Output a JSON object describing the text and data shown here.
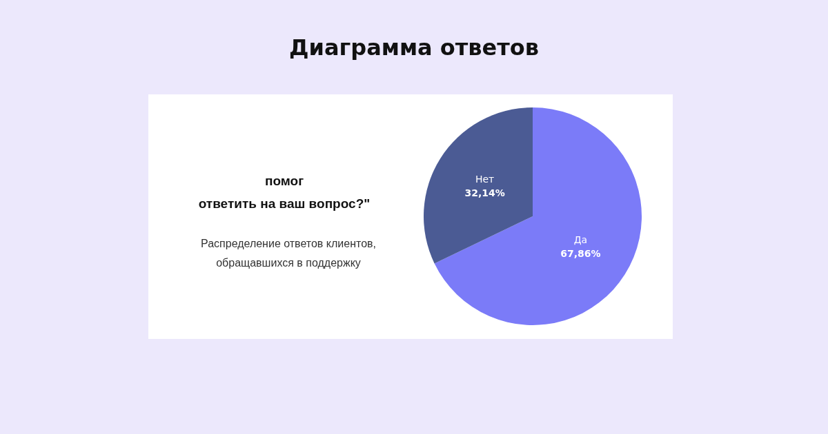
{
  "chart_data": {
    "type": "pie",
    "title": "Диаграмма ответов",
    "subtitle": "помог\nответить на ваш вопрос?\"",
    "annotations": [
      "Распределение ответов клиентов,\nобращавшихся в поддержку"
    ],
    "categories": [
      "Да",
      "Нет"
    ],
    "values": [
      67.86,
      32.14
    ],
    "colors": [
      "#7b7bf8",
      "#4b5b94"
    ],
    "value_labels": [
      "67,86%",
      "32,14%"
    ]
  }
}
